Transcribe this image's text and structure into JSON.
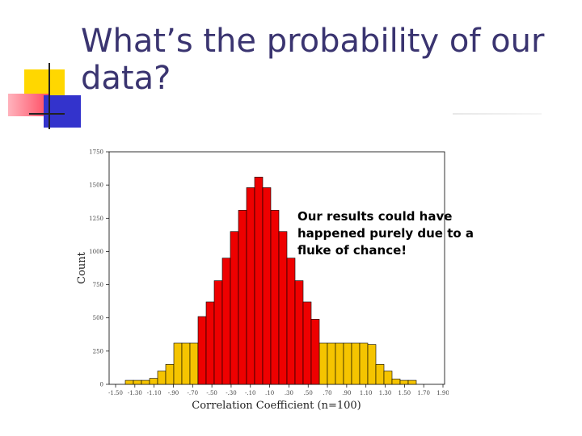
{
  "slide": {
    "title_line1": "What’s the probability of our",
    "title_line2": "data?",
    "callout": "Our results could have happened purely due to a fluke of chance!"
  },
  "colors": {
    "title": "#3a3470",
    "bar_center": "#ee0000",
    "bar_tail": "#f5c400",
    "bar_stroke": "#000000",
    "deco_yellow": "#ffd700",
    "deco_red": "#ff5a6e",
    "deco_blue": "#3333cc"
  },
  "chart_data": {
    "type": "bar",
    "title": "",
    "xlabel": "Correlation Coefficient (n=100)",
    "ylabel": "Count",
    "ylim": [
      0,
      1750
    ],
    "yticks": [
      0,
      250,
      500,
      750,
      1000,
      1250,
      1500,
      1750
    ],
    "xticks": [
      "-1.50",
      "-1.30",
      "-1.10",
      "-.90",
      "-.70",
      "-.50",
      "-.30",
      "-.10",
      ".10",
      ".30",
      ".50",
      ".70",
      ".90",
      "1.10",
      "1.30",
      "1.50",
      "1.70",
      "1.90"
    ],
    "grid": false,
    "series": [
      {
        "color_key": "bar_tail",
        "values": [
          30,
          30,
          30,
          45,
          100,
          150,
          310,
          310,
          310,
          310,
          310,
          310,
          310,
          310,
          310,
          310,
          310,
          310,
          310,
          310,
          310,
          310,
          310,
          310,
          310,
          310,
          310,
          310,
          310,
          310,
          300,
          150,
          100,
          40,
          30,
          30,
          0,
          0,
          0,
          0
        ]
      },
      {
        "color_key": "bar_center",
        "values": [
          0,
          0,
          0,
          0,
          0,
          0,
          0,
          0,
          0,
          510,
          620,
          780,
          950,
          1150,
          1310,
          1480,
          1560,
          1480,
          1310,
          1150,
          950,
          780,
          620,
          490,
          0,
          0,
          0,
          0,
          0,
          0,
          0,
          0,
          0,
          0,
          0,
          0,
          0,
          0,
          0,
          0
        ]
      }
    ]
  }
}
